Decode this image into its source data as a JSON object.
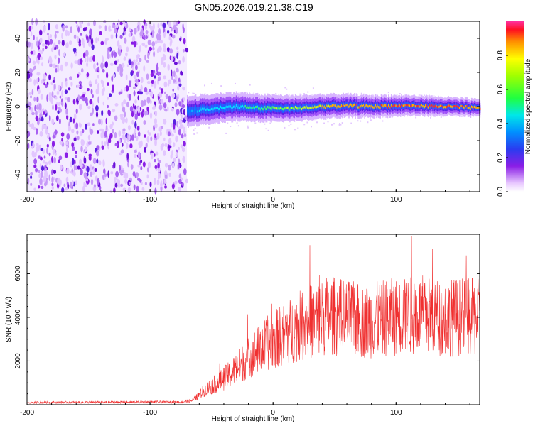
{
  "title": "GN05.2026.019.21.38.C19",
  "colors": {
    "snr_line": "#f03030",
    "noise": "#8a1ee6",
    "spectrum_ramp": [
      "#ffffff",
      "#e9c8ff",
      "#b060ff",
      "#7b10f0",
      "#3c28e6",
      "#0080ff",
      "#00e0ff",
      "#40ff60",
      "#c0ff20",
      "#ffb000",
      "#ff3020"
    ]
  },
  "chart_data": [
    {
      "type": "heatmap",
      "title": "GN05.2026.019.21.38.C19",
      "xlabel": "Height of straight line (km)",
      "ylabel": "Frequency (Hz)",
      "xlim": [
        -200,
        168
      ],
      "ylim": [
        -50,
        50
      ],
      "xticks": [
        "-200",
        "-100",
        "0",
        "100"
      ],
      "yticks": [
        "-40",
        "-20",
        "0",
        "20",
        "40"
      ],
      "colorbar": {
        "label": "Normalized spectral amplitude",
        "range": [
          0,
          1
        ],
        "ticks": [
          "0.0",
          "0.2",
          "0.4",
          "0.6",
          "0.8"
        ]
      },
      "noise_region_x": [
        -200,
        -70
      ],
      "signal_track": {
        "x": [
          -70,
          -60,
          -50,
          -40,
          -30,
          -20,
          -10,
          0,
          20,
          40,
          60,
          80,
          100,
          120,
          140,
          168
        ],
        "frequency": [
          -3,
          -2,
          -1.5,
          -0.5,
          0,
          -0.5,
          -1,
          -1,
          -1,
          0,
          0.5,
          0,
          0.5,
          0.5,
          0,
          -1
        ],
        "peak_amplitude": [
          0.45,
          0.5,
          0.55,
          0.55,
          0.55,
          0.6,
          0.6,
          0.7,
          0.75,
          0.85,
          0.9,
          0.9,
          0.95,
          0.95,
          0.95,
          0.9
        ]
      }
    },
    {
      "type": "line",
      "xlabel": "Height of straight line (km)",
      "ylabel": "SNR (10 * v/v)",
      "xlim": [
        -200,
        168
      ],
      "ylim": [
        0,
        7800
      ],
      "xticks": [
        "-200",
        "-100",
        "0",
        "100"
      ],
      "yticks": [
        "2000",
        "4000",
        "6000"
      ],
      "series": [
        {
          "x": [
            -200,
            -150,
            -100,
            -75,
            -65,
            -55,
            -45,
            -35,
            -25,
            -15,
            -5,
            5,
            15,
            25,
            35,
            45,
            55,
            65,
            75,
            85,
            95,
            105,
            115,
            125,
            135,
            145,
            155,
            168
          ],
          "y": [
            100,
            110,
            120,
            120,
            200,
            700,
            1000,
            1400,
            1900,
            2400,
            2800,
            3100,
            3400,
            3700,
            3900,
            4100,
            4000,
            3900,
            3800,
            3900,
            4000,
            4000,
            4100,
            4100,
            4000,
            4000,
            4000,
            4000
          ]
        }
      ]
    }
  ]
}
